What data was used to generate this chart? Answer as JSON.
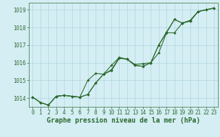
{
  "title": "Graphe pression niveau de la mer (hPa)",
  "xlabel_hours": [
    0,
    1,
    2,
    3,
    4,
    5,
    6,
    7,
    8,
    9,
    10,
    11,
    12,
    13,
    14,
    15,
    16,
    17,
    18,
    19,
    20,
    21,
    22,
    23
  ],
  "line1": [
    1014.05,
    1013.75,
    1013.6,
    1014.1,
    1014.15,
    1014.1,
    1014.05,
    1014.2,
    1014.85,
    1015.35,
    1015.55,
    1016.25,
    1016.2,
    1015.9,
    1015.95,
    1016.0,
    1016.55,
    1017.7,
    1017.7,
    1018.25,
    1018.35,
    1018.9,
    1019.0,
    1019.1
  ],
  "line2": [
    1014.05,
    1013.75,
    1013.6,
    1014.1,
    1014.15,
    1014.1,
    1014.05,
    1014.2,
    1014.85,
    1015.35,
    1015.85,
    1016.3,
    1016.2,
    1015.85,
    1015.8,
    1016.0,
    1017.0,
    1017.7,
    1018.45,
    1018.25,
    1018.4,
    1018.9,
    1019.0,
    1019.1
  ],
  "line3": [
    1014.05,
    1013.75,
    1013.6,
    1014.1,
    1014.15,
    1014.1,
    1014.05,
    1015.0,
    1015.4,
    1015.35,
    1015.6,
    1016.3,
    1016.2,
    1015.85,
    1015.8,
    1016.0,
    1017.0,
    1017.75,
    1018.45,
    1018.25,
    1018.4,
    1018.9,
    1019.0,
    1019.1
  ],
  "line_color": "#2d6a2d",
  "marker": "D",
  "marker_size": 1.8,
  "background_color": "#d4eef4",
  "grid_color": "#b0d4dc",
  "axis_bg": "#d4eef4",
  "ylim": [
    1013.5,
    1019.4
  ],
  "yticks": [
    1014,
    1015,
    1016,
    1017,
    1018,
    1019
  ],
  "title_color": "#2d6a2d",
  "title_fontsize": 7.0,
  "tick_fontsize": 5.5,
  "line_width": 0.8
}
